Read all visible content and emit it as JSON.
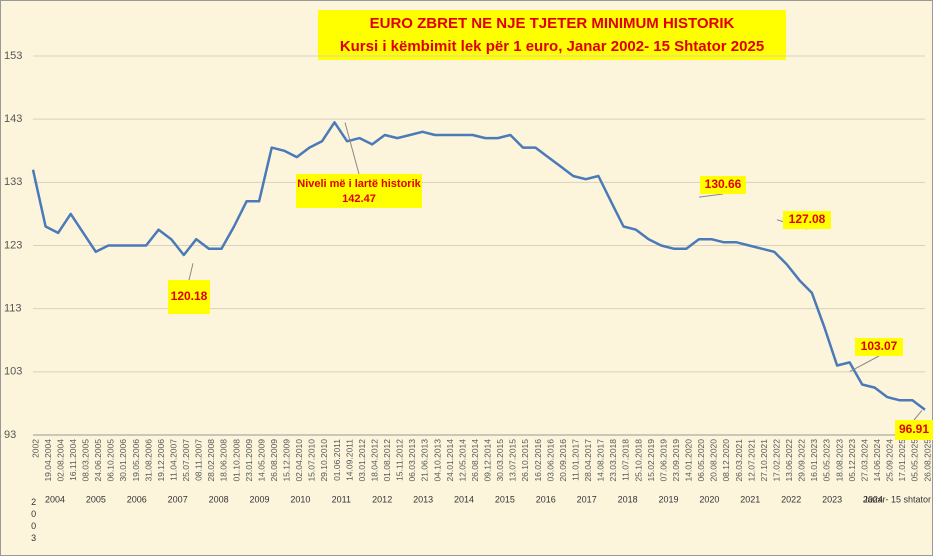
{
  "chart_data": {
    "type": "line",
    "title": "EURO ZBRET NE NJE TJETER MINIMUM HISTORIK",
    "subtitle": "Kursi i këmbimit lek për 1 euro, Janar 2002- 15 Shtator 2025",
    "categories": [
      "2002",
      "19.04.2004",
      "02.08.2004",
      "16.11.2004",
      "08.03.2005",
      "24.06.2005",
      "06.10.2005",
      "30.01.2006",
      "19.05.2006",
      "31.08.2006",
      "19.12.2006",
      "11.04.2007",
      "25.07.2007",
      "08.11.2007",
      "28.02.2008",
      "18.06.2008",
      "01.10.2008",
      "23.01.2009",
      "14.05.2009",
      "26.08.2009",
      "15.12.2009",
      "02.04.2010",
      "15.07.2010",
      "29.10.2010",
      "01.06.2011",
      "14.09.2011",
      "03.01.2012",
      "18.04.2012",
      "01.08.2012",
      "15.11.2012",
      "06.03.2013",
      "21.06.2013",
      "04.10.2013",
      "24.01.2014",
      "12.05.2014",
      "26.08.2014",
      "09.12.2014",
      "30.03.2015",
      "13.07.2015",
      "26.10.2015",
      "16.02.2016",
      "03.06.2016",
      "20.09.2016",
      "11.01.2017",
      "28.04.2017",
      "14.08.2017",
      "23.03.2018",
      "11.07.2018",
      "25.10.2018",
      "15.02.2019",
      "07.06.2019",
      "23.09.2019",
      "14.01.2020",
      "06.05.2020",
      "20.08.2020",
      "08.12.2020",
      "26.03.2021",
      "12.07.2021",
      "27.10.2021",
      "17.02.2022",
      "13.06.2022",
      "29.09.2022",
      "16.01.2023",
      "05.05.2023",
      "18.08.2023",
      "05.12.2023",
      "27.03.2024",
      "14.06.2024",
      "25.09.2024",
      "17.01.2025",
      "05.05.2025",
      "26.08.2025"
    ],
    "values": [
      135,
      126,
      125,
      128,
      125,
      122,
      123,
      123,
      123,
      123,
      125.5,
      124,
      121.5,
      124,
      122.5,
      122.5,
      126,
      130,
      130,
      138.5,
      138,
      137,
      138.5,
      139.5,
      142.5,
      139.5,
      140,
      139,
      140.5,
      140,
      140.5,
      141,
      140.5,
      140.5,
      140.5,
      140.5,
      140,
      140,
      140.5,
      138.5,
      138.5,
      137,
      135.5,
      134,
      133.5,
      134,
      130,
      126,
      125.5,
      124,
      123,
      122.5,
      122.5,
      124,
      124,
      123.5,
      123.5,
      123,
      122.5,
      122,
      120,
      117.5,
      115.5,
      110,
      104,
      104.5,
      101,
      100.5,
      99,
      98.5,
      98.5,
      97
    ],
    "color": "#4a7ab8",
    "ylim": [
      93,
      153
    ],
    "yticks": [
      93,
      103,
      113,
      123,
      133,
      143,
      153
    ],
    "grid": true,
    "year_labels": [
      "2003",
      "2004",
      "2005",
      "2006",
      "2007",
      "2008",
      "2009",
      "2010",
      "2011",
      "2012",
      "2013",
      "2014",
      "2015",
      "2016",
      "2017",
      "2018",
      "2019",
      "2020",
      "2021",
      "2022",
      "2023",
      "2024",
      "Janar- 15 shtator"
    ],
    "annotations": [
      {
        "label": "120.18",
        "value": 120.18
      },
      {
        "text": "Niveli më i lartë historik",
        "label": "142.47",
        "value": 142.47
      },
      {
        "label": "130.66",
        "value": 130.66
      },
      {
        "label": "127.08",
        "value": 127.08
      },
      {
        "label": "103.07",
        "value": 103.07
      },
      {
        "label": "96.91",
        "value": 96.91
      }
    ]
  }
}
